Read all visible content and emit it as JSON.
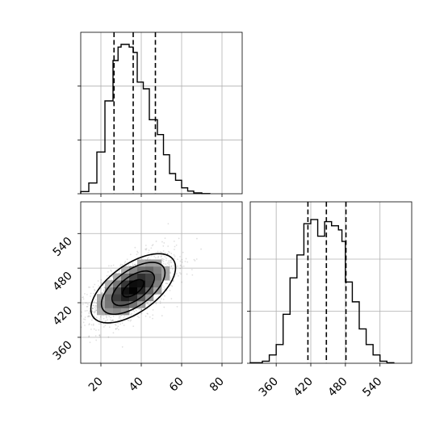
{
  "chart_data": [
    {
      "type": "bar",
      "panel": "top-left histogram",
      "xlim": [
        10,
        90
      ],
      "ylim": [
        0,
        0.06
      ],
      "grid": true,
      "bins": [
        {
          "x0": 10,
          "x1": 14,
          "v": 0.0008
        },
        {
          "x0": 14,
          "x1": 18,
          "v": 0.004
        },
        {
          "x0": 18,
          "x1": 22,
          "v": 0.0155
        },
        {
          "x0": 22,
          "x1": 26,
          "v": 0.0345
        },
        {
          "x0": 26,
          "x1": 28.5,
          "v": 0.0495
        },
        {
          "x0": 28.5,
          "x1": 30,
          "v": 0.0545
        },
        {
          "x0": 30,
          "x1": 34,
          "v": 0.0555
        },
        {
          "x0": 34,
          "x1": 36,
          "v": 0.0545
        },
        {
          "x0": 36,
          "x1": 38,
          "v": 0.0525
        },
        {
          "x0": 38,
          "x1": 41,
          "v": 0.0415
        },
        {
          "x0": 41,
          "x1": 44,
          "v": 0.039
        },
        {
          "x0": 44,
          "x1": 48,
          "v": 0.0275
        },
        {
          "x0": 48,
          "x1": 51,
          "v": 0.022
        },
        {
          "x0": 51,
          "x1": 54,
          "v": 0.0145
        },
        {
          "x0": 54,
          "x1": 57,
          "v": 0.0075
        },
        {
          "x0": 57,
          "x1": 60,
          "v": 0.005
        },
        {
          "x0": 60,
          "x1": 63,
          "v": 0.0022
        },
        {
          "x0": 63,
          "x1": 66,
          "v": 0.001
        },
        {
          "x0": 66,
          "x1": 70,
          "v": 0.0003
        },
        {
          "x0": 70,
          "x1": 74,
          "v": 5e-05
        }
      ],
      "quantiles": [
        26.5,
        36,
        47
      ]
    },
    {
      "type": "scatter",
      "panel": "bottom-left 2D density",
      "xlim": [
        10,
        90
      ],
      "ylim": [
        315,
        595
      ],
      "grid": true,
      "x_ticks": [
        "20",
        "40",
        "60",
        "80"
      ],
      "y_ticks": [
        "360",
        "420",
        "480",
        "540"
      ],
      "mean": [
        36,
        445
      ],
      "std": [
        10.5,
        30
      ],
      "correlation": 0.6,
      "n_points": 1800
    },
    {
      "type": "bar",
      "panel": "bottom-right histogram",
      "xlim": [
        315,
        595
      ],
      "ylim": [
        0,
        0.0155
      ],
      "grid": true,
      "x_ticks": [
        "360",
        "420",
        "480",
        "540"
      ],
      "bins": [
        {
          "x0": 315,
          "x1": 336,
          "v": 5e-05
        },
        {
          "x0": 336,
          "x1": 348,
          "v": 0.0002
        },
        {
          "x0": 348,
          "x1": 360,
          "v": 0.0008
        },
        {
          "x0": 360,
          "x1": 372,
          "v": 0.0018
        },
        {
          "x0": 372,
          "x1": 384,
          "v": 0.0047
        },
        {
          "x0": 384,
          "x1": 396,
          "v": 0.0082
        },
        {
          "x0": 396,
          "x1": 408,
          "v": 0.0104
        },
        {
          "x0": 408,
          "x1": 420,
          "v": 0.0134
        },
        {
          "x0": 420,
          "x1": 432,
          "v": 0.0138
        },
        {
          "x0": 432,
          "x1": 444,
          "v": 0.0122
        },
        {
          "x0": 444,
          "x1": 456,
          "v": 0.0136
        },
        {
          "x0": 456,
          "x1": 468,
          "v": 0.0132
        },
        {
          "x0": 468,
          "x1": 474,
          "v": 0.0128
        },
        {
          "x0": 474,
          "x1": 480,
          "v": 0.0117
        },
        {
          "x0": 480,
          "x1": 492,
          "v": 0.0078
        },
        {
          "x0": 492,
          "x1": 504,
          "v": 0.0059
        },
        {
          "x0": 504,
          "x1": 516,
          "v": 0.0033
        },
        {
          "x0": 516,
          "x1": 528,
          "v": 0.0018
        },
        {
          "x0": 528,
          "x1": 540,
          "v": 0.0008
        },
        {
          "x0": 540,
          "x1": 552,
          "v": 0.0002
        },
        {
          "x0": 552,
          "x1": 564,
          "v": 5e-05
        }
      ],
      "quantiles": [
        415,
        447,
        481
      ]
    }
  ]
}
